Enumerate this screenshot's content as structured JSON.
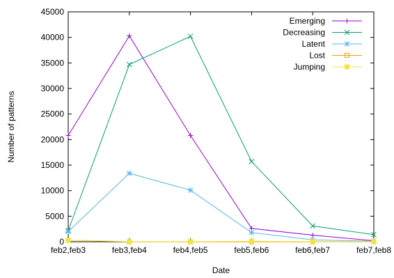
{
  "chart_data": {
    "type": "line",
    "title": "",
    "xlabel": "Date",
    "ylabel": "Number of patterns",
    "categories": [
      "feb2,feb3",
      "feb3,feb4",
      "feb4,feb5",
      "feb5,feb6",
      "feb6,feb7",
      "feb7,feb8"
    ],
    "ylim": [
      0,
      45000
    ],
    "yticks": [
      0,
      5000,
      10000,
      15000,
      20000,
      25000,
      30000,
      35000,
      40000,
      45000
    ],
    "ytick_labels": [
      "0",
      "5000",
      "10000",
      "15000",
      "20000",
      "25000",
      "30000",
      "35000",
      "40000",
      "45000"
    ],
    "grid": false,
    "legend_position": "top-right",
    "series": [
      {
        "name": "Emerging",
        "marker": "plus",
        "color": "#9400d3",
        "values": [
          20800,
          40300,
          20800,
          2600,
          1300,
          200
        ]
      },
      {
        "name": "Decreasing",
        "marker": "cross",
        "color": "#009e73",
        "values": [
          2200,
          34700,
          40200,
          15700,
          3100,
          1400
        ]
      },
      {
        "name": "Latent",
        "marker": "star",
        "color": "#56b4e9",
        "values": [
          2000,
          13400,
          10100,
          1800,
          400,
          100
        ]
      },
      {
        "name": "Lost",
        "marker": "square-open",
        "color": "#e69f00",
        "values": [
          300,
          0,
          0,
          0,
          0,
          0
        ]
      },
      {
        "name": "Jumping",
        "marker": "square-filled",
        "color": "#f0e442",
        "values": [
          300,
          50,
          50,
          100,
          50,
          50
        ]
      }
    ]
  }
}
